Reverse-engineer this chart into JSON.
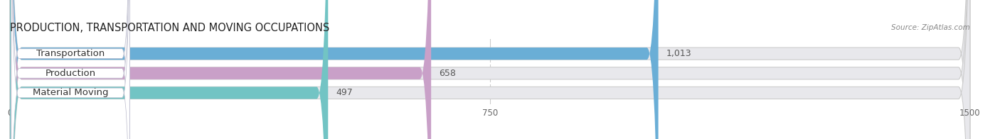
{
  "title": "PRODUCTION, TRANSPORTATION AND MOVING OCCUPATIONS",
  "source": "Source: ZipAtlas.com",
  "categories": [
    "Transportation",
    "Production",
    "Material Moving"
  ],
  "values": [
    1013,
    658,
    497
  ],
  "bar_colors": [
    "#6aaed6",
    "#c9a0c8",
    "#72c4c4"
  ],
  "value_labels": [
    "1,013",
    "658",
    "497"
  ],
  "xlim": [
    0,
    1500
  ],
  "xticks": [
    0,
    750,
    1500
  ],
  "background_color": "#ffffff",
  "bar_bg_color": "#e8e8ec",
  "title_fontsize": 10.5,
  "label_fontsize": 9.5,
  "value_fontsize": 9
}
